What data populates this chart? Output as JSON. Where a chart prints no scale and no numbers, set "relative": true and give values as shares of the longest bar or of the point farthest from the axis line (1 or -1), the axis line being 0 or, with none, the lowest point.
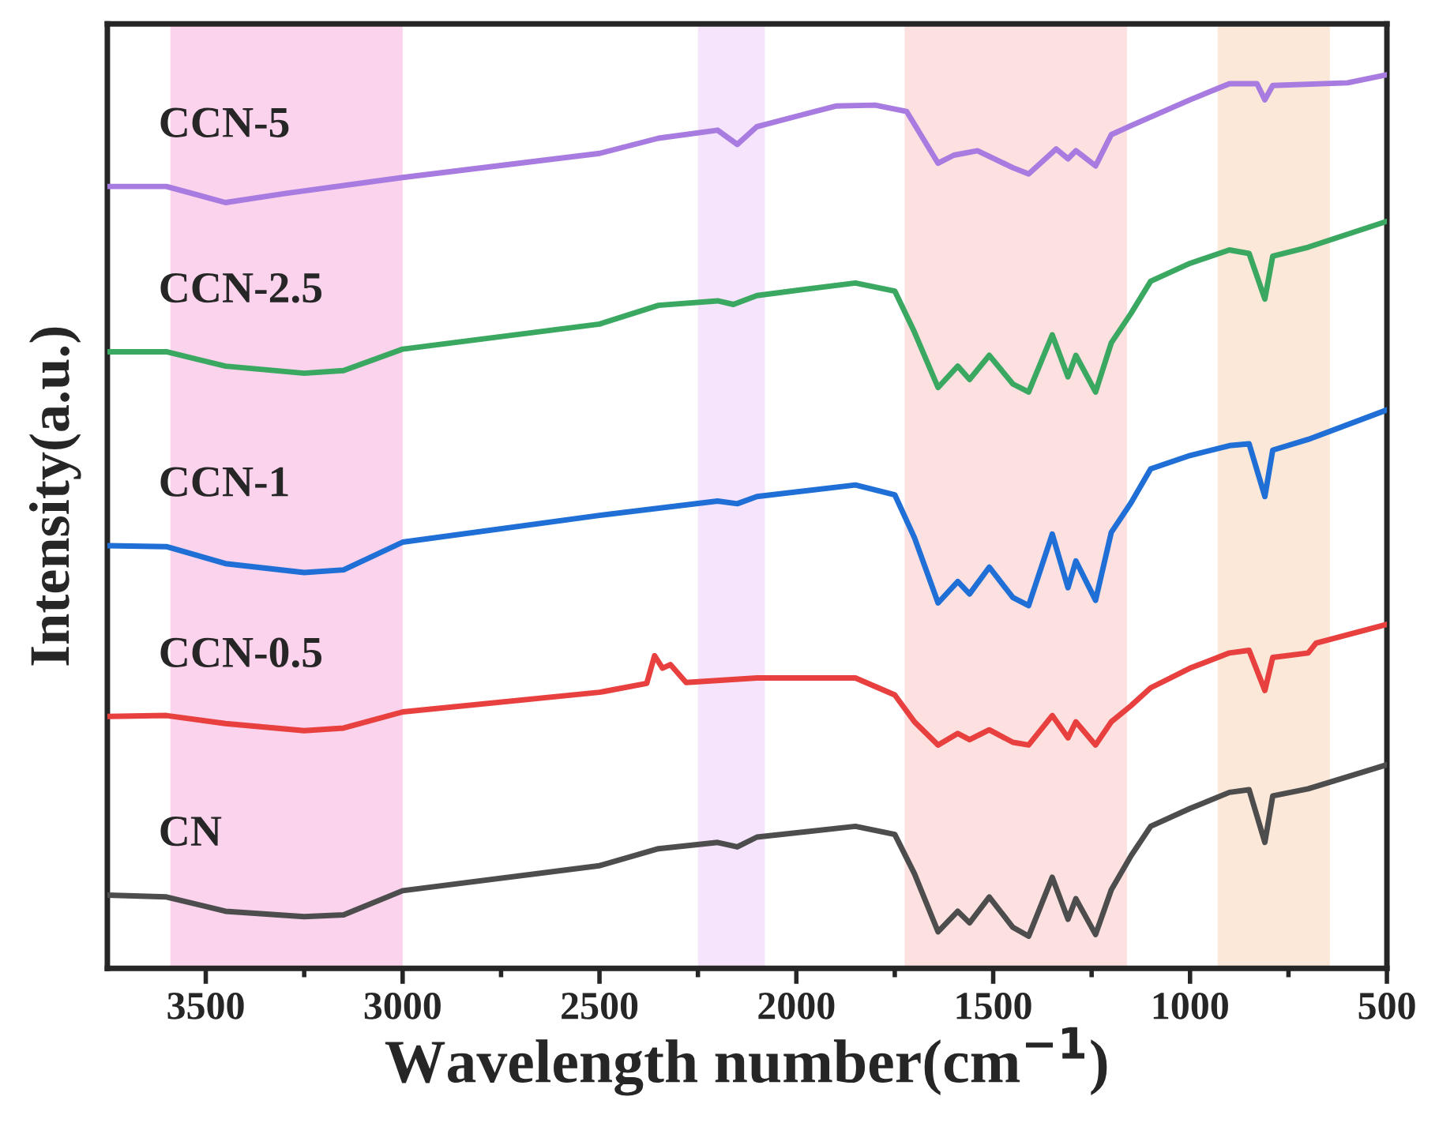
{
  "chart_data": {
    "type": "line",
    "relative": true,
    "xlabel": "Wavelength number(cm$^{−1}$)",
    "ylabel": "Intensity(a.u.)",
    "xlim": [
      3750,
      500
    ],
    "xticks": [
      3500,
      3000,
      2500,
      2000,
      1500,
      1000,
      500
    ],
    "tick_labels": "x",
    "grid": false,
    "legend": false,
    "line_style": "solid",
    "marker": "none",
    "bands": [
      {
        "axis": "x",
        "from": 3590,
        "to": 3000,
        "color": "#fbd3ec"
      },
      {
        "axis": "x",
        "from": 2250,
        "to": 2080,
        "color": "#f5e4fc"
      },
      {
        "axis": "x",
        "from": 1725,
        "to": 1160,
        "color": "#fde0e0"
      },
      {
        "axis": "x",
        "from": 930,
        "to": 645,
        "color": "#fbe8d8"
      }
    ],
    "series": [
      {
        "name": "CN",
        "color": "#4d4d4d",
        "x": [
          3750,
          3600,
          3450,
          3250,
          3150,
          3000,
          2500,
          2350,
          2200,
          2150,
          2100,
          1850,
          1750,
          1700,
          1640,
          1590,
          1560,
          1510,
          1450,
          1410,
          1350,
          1310,
          1290,
          1240,
          1200,
          1150,
          1100,
          1000,
          900,
          850,
          810,
          790,
          700,
          500
        ],
        "values": [
          0.082,
          0.08,
          0.064,
          0.058,
          0.06,
          0.087,
          0.115,
          0.134,
          0.141,
          0.136,
          0.147,
          0.159,
          0.15,
          0.106,
          0.041,
          0.064,
          0.051,
          0.08,
          0.046,
          0.036,
          0.102,
          0.055,
          0.078,
          0.038,
          0.088,
          0.126,
          0.159,
          0.179,
          0.197,
          0.2,
          0.141,
          0.193,
          0.201,
          0.228
        ]
      },
      {
        "name": "CCN-0.5",
        "color": "#e8403f",
        "x": [
          3750,
          3600,
          3450,
          3250,
          3150,
          3000,
          2500,
          2380,
          2360,
          2340,
          2320,
          2280,
          2100,
          1850,
          1750,
          1700,
          1640,
          1590,
          1560,
          1510,
          1450,
          1410,
          1350,
          1310,
          1290,
          1240,
          1200,
          1150,
          1100,
          1000,
          900,
          850,
          810,
          790,
          700,
          680,
          500
        ],
        "values": [
          0.282,
          0.283,
          0.274,
          0.266,
          0.269,
          0.287,
          0.309,
          0.319,
          0.35,
          0.336,
          0.34,
          0.32,
          0.325,
          0.325,
          0.306,
          0.276,
          0.25,
          0.263,
          0.256,
          0.267,
          0.253,
          0.25,
          0.283,
          0.258,
          0.276,
          0.25,
          0.276,
          0.294,
          0.314,
          0.336,
          0.353,
          0.356,
          0.311,
          0.348,
          0.353,
          0.364,
          0.385
        ]
      },
      {
        "name": "CCN-1",
        "color": "#1f6fd6",
        "x": [
          3750,
          3600,
          3450,
          3250,
          3150,
          3000,
          2500,
          2200,
          2150,
          2100,
          1850,
          1750,
          1700,
          1640,
          1590,
          1560,
          1510,
          1450,
          1410,
          1350,
          1310,
          1290,
          1240,
          1200,
          1150,
          1100,
          1000,
          900,
          850,
          810,
          790,
          700,
          500
        ],
        "values": [
          0.473,
          0.472,
          0.453,
          0.443,
          0.446,
          0.477,
          0.507,
          0.523,
          0.52,
          0.528,
          0.541,
          0.53,
          0.482,
          0.409,
          0.433,
          0.419,
          0.449,
          0.415,
          0.406,
          0.486,
          0.426,
          0.456,
          0.412,
          0.488,
          0.521,
          0.559,
          0.574,
          0.585,
          0.587,
          0.528,
          0.58,
          0.592,
          0.625
        ]
      },
      {
        "name": "CCN-2.5",
        "color": "#3aa861",
        "x": [
          3750,
          3600,
          3450,
          3250,
          3150,
          3000,
          2500,
          2350,
          2200,
          2160,
          2100,
          1850,
          1750,
          1700,
          1640,
          1590,
          1560,
          1510,
          1450,
          1410,
          1350,
          1310,
          1290,
          1240,
          1200,
          1150,
          1100,
          1000,
          900,
          850,
          810,
          790,
          700,
          500
        ],
        "values": [
          0.69,
          0.69,
          0.674,
          0.666,
          0.669,
          0.693,
          0.721,
          0.742,
          0.747,
          0.743,
          0.753,
          0.767,
          0.758,
          0.712,
          0.65,
          0.674,
          0.659,
          0.686,
          0.654,
          0.645,
          0.709,
          0.662,
          0.686,
          0.645,
          0.7,
          0.733,
          0.769,
          0.789,
          0.804,
          0.8,
          0.749,
          0.797,
          0.807,
          0.836
        ]
      },
      {
        "name": "CCN-5",
        "color": "#a87be0",
        "x": [
          3750,
          3600,
          3450,
          3300,
          3000,
          2500,
          2350,
          2200,
          2150,
          2100,
          1900,
          1800,
          1720,
          1640,
          1600,
          1540,
          1450,
          1410,
          1340,
          1310,
          1290,
          1240,
          1200,
          1150,
          1000,
          900,
          830,
          810,
          790,
          600,
          500
        ],
        "values": [
          0.875,
          0.875,
          0.857,
          0.867,
          0.885,
          0.912,
          0.929,
          0.938,
          0.922,
          0.942,
          0.965,
          0.966,
          0.959,
          0.901,
          0.91,
          0.915,
          0.896,
          0.889,
          0.917,
          0.906,
          0.915,
          0.898,
          0.933,
          0.943,
          0.972,
          0.99,
          0.99,
          0.972,
          0.988,
          0.991,
          1.0
        ]
      }
    ]
  }
}
